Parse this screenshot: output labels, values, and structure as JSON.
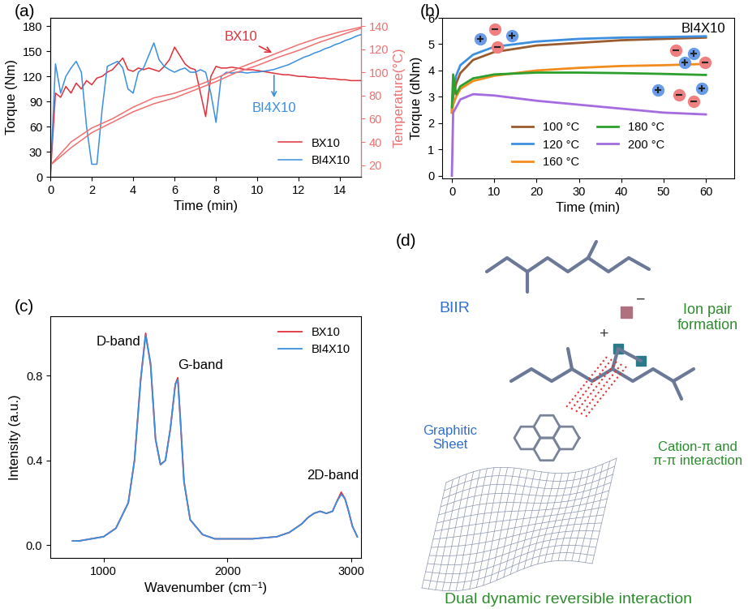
{
  "chart_data": [
    {
      "panel_label": "(a)",
      "type": "line",
      "x_label": "Time (min)",
      "y_label": "Torque (Nm)",
      "y2_label": "Temperature(°C)",
      "xlim": [
        0,
        15
      ],
      "xticks": [
        0,
        2,
        4,
        6,
        8,
        10,
        12,
        14
      ],
      "ylim": [
        0,
        190
      ],
      "yticks": [
        0,
        30,
        60,
        90,
        120,
        150,
        180
      ],
      "y2lim": [
        10,
        147
      ],
      "y2ticks": [
        20,
        40,
        60,
        80,
        100,
        120,
        140
      ],
      "legend": "lower right",
      "annotations": [
        "BX10",
        "BI4X10"
      ],
      "series": [
        {
          "name": "BX10",
          "color": "#e0303a",
          "x": [
            0,
            0.25,
            0.5,
            0.75,
            1,
            1.25,
            1.5,
            1.75,
            2,
            2.25,
            2.5,
            2.75,
            3,
            3.25,
            3.5,
            3.75,
            4,
            4.25,
            4.5,
            4.75,
            5,
            5.25,
            5.5,
            5.75,
            6,
            6.25,
            6.5,
            6.75,
            7,
            7.25,
            7.5,
            7.75,
            8,
            8.25,
            8.5,
            8.75,
            9,
            9.25,
            9.5,
            9.75,
            10,
            10.25,
            10.5,
            10.75,
            11,
            11.25,
            11.5,
            11.75,
            12,
            12.25,
            12.5,
            12.75,
            13,
            13.25,
            13.5,
            13.75,
            14,
            14.25,
            14.5,
            14.75,
            15
          ],
          "values": [
            0,
            100,
            95,
            108,
            100,
            112,
            105,
            115,
            110,
            118,
            120,
            125,
            128,
            135,
            142,
            128,
            126,
            130,
            128,
            130,
            128,
            126,
            132,
            140,
            155,
            145,
            135,
            130,
            128,
            100,
            72,
            120,
            132,
            130,
            130,
            131,
            130,
            129,
            128,
            128,
            127,
            126,
            125,
            124,
            123,
            122,
            122,
            121,
            120,
            120,
            119,
            119,
            118,
            118,
            117,
            117,
            116,
            116,
            115,
            115,
            115
          ]
        },
        {
          "name": "BI4X10",
          "color": "#3a8fe0",
          "x": [
            0,
            0.25,
            0.5,
            0.75,
            1,
            1.25,
            1.5,
            1.75,
            2,
            2.25,
            2.5,
            2.75,
            3,
            3.25,
            3.5,
            3.75,
            4,
            4.25,
            4.5,
            4.75,
            5,
            5.25,
            5.5,
            5.75,
            6,
            6.25,
            6.5,
            6.75,
            7,
            7.25,
            7.5,
            7.75,
            8,
            8.25,
            8.5,
            8.75,
            9,
            9.25,
            9.5,
            9.75,
            10,
            10.25,
            10.5,
            10.75,
            11,
            11.25,
            11.5,
            11.75,
            12,
            12.25,
            12.5,
            12.75,
            13,
            13.25,
            13.5,
            13.75,
            14,
            14.25,
            14.5,
            14.75,
            15
          ],
          "values": [
            0,
            135,
            100,
            120,
            130,
            138,
            125,
            60,
            15,
            15,
            80,
            132,
            135,
            138,
            130,
            105,
            100,
            125,
            130,
            145,
            160,
            140,
            132,
            128,
            125,
            128,
            130,
            125,
            125,
            128,
            125,
            100,
            65,
            120,
            125,
            124,
            125,
            125,
            124,
            125,
            125,
            126,
            127,
            128,
            130,
            132,
            134,
            137,
            140,
            143,
            145,
            148,
            150,
            153,
            155,
            158,
            160,
            163,
            165,
            168,
            170
          ]
        },
        {
          "color": "#f07070",
          "axis": "y2",
          "x": [
            0,
            1,
            2,
            3,
            4,
            5,
            6,
            7,
            8,
            9,
            10,
            11,
            12,
            13,
            14,
            15
          ],
          "values": [
            20,
            40,
            52,
            60,
            70,
            78,
            82,
            88,
            95,
            103,
            110,
            117,
            124,
            130,
            135,
            139
          ]
        },
        {
          "color": "#f07070",
          "axis": "y2",
          "x": [
            0,
            1,
            2,
            3,
            4,
            5,
            6,
            7,
            8,
            9,
            10,
            11,
            12,
            13,
            14,
            15
          ],
          "values": [
            20,
            35,
            48,
            57,
            66,
            73,
            78,
            85,
            92,
            100,
            106,
            113,
            119,
            126,
            132,
            138
          ]
        }
      ]
    },
    {
      "panel_label": "(b)",
      "type": "line",
      "x_label": "Time (min)",
      "y_label": "Torque (dNm)",
      "xlim": [
        -2.3,
        66.7
      ],
      "xticks": [
        0,
        10,
        20,
        30,
        40,
        50,
        60
      ],
      "ylim": [
        -0.1,
        6
      ],
      "yticks": [
        0,
        1,
        2,
        3,
        4,
        5,
        6
      ],
      "legend": "lower center",
      "annotations": [
        "BI4X10"
      ],
      "x": [
        0,
        0.3,
        1,
        2,
        5,
        10,
        20,
        30,
        40,
        50,
        60
      ],
      "series": [
        {
          "name": "100 °C",
          "color": "#9a5b2e",
          "values": [
            2.4,
            3.0,
            3.5,
            3.9,
            4.4,
            4.7,
            4.95,
            5.05,
            5.15,
            5.2,
            5.25
          ]
        },
        {
          "name": "120 °C",
          "color": "#3d8fe0",
          "values": [
            2.5,
            3.2,
            3.8,
            4.2,
            4.6,
            4.9,
            5.1,
            5.2,
            5.25,
            5.27,
            5.3
          ]
        },
        {
          "name": "160 °C",
          "color": "#f28c1e",
          "values": [
            2.4,
            2.7,
            3.0,
            3.3,
            3.6,
            3.8,
            4.0,
            4.1,
            4.17,
            4.2,
            4.25
          ]
        },
        {
          "name": "180 °C",
          "color": "#2ca02c",
          "values": [
            2.6,
            3.85,
            3.1,
            3.4,
            3.7,
            3.85,
            3.92,
            3.92,
            3.9,
            3.87,
            3.83
          ]
        },
        {
          "name": "200 °C",
          "color": "#a46ce0",
          "values": [
            0,
            2.4,
            2.6,
            2.9,
            3.1,
            3.05,
            2.85,
            2.7,
            2.55,
            2.4,
            2.33
          ]
        }
      ]
    },
    {
      "panel_label": "(c)",
      "type": "line",
      "x_label": "Wavenumber (cm⁻¹)",
      "y_label": "Intensity (a.u.)",
      "xlim": [
        570,
        3080
      ],
      "xticks": [
        1000,
        2000,
        3000
      ],
      "ylim": [
        -0.06,
        1.08
      ],
      "yticks": [
        {
          "value": 0,
          "label": "0.0"
        },
        {
          "value": 0.4,
          "label": "0.4"
        },
        {
          "value": 0.8,
          "label": "0.8"
        }
      ],
      "legend": "upper right",
      "annotations": [
        "D-band",
        "G-band",
        "2D-band"
      ],
      "x": [
        750,
        800,
        900,
        1000,
        1100,
        1200,
        1250,
        1300,
        1340,
        1380,
        1420,
        1460,
        1500,
        1540,
        1580,
        1600,
        1620,
        1650,
        1700,
        1800,
        1900,
        2000,
        2200,
        2400,
        2500,
        2600,
        2650,
        2700,
        2750,
        2800,
        2850,
        2880,
        2920,
        2950,
        2980,
        3010,
        3050
      ],
      "series": [
        {
          "name": "BX10",
          "color": "#e0303a",
          "values": [
            0.02,
            0.02,
            0.03,
            0.04,
            0.08,
            0.2,
            0.4,
            0.78,
            1.0,
            0.85,
            0.5,
            0.38,
            0.4,
            0.55,
            0.76,
            0.79,
            0.6,
            0.3,
            0.12,
            0.05,
            0.03,
            0.03,
            0.03,
            0.04,
            0.06,
            0.1,
            0.13,
            0.15,
            0.16,
            0.15,
            0.16,
            0.2,
            0.25,
            0.22,
            0.16,
            0.09,
            0.04
          ]
        },
        {
          "name": "BI4X10",
          "color": "#3a8fe0",
          "values": [
            0.02,
            0.02,
            0.03,
            0.04,
            0.08,
            0.2,
            0.4,
            0.78,
            0.99,
            0.86,
            0.5,
            0.38,
            0.4,
            0.55,
            0.76,
            0.78,
            0.6,
            0.3,
            0.12,
            0.05,
            0.03,
            0.03,
            0.03,
            0.04,
            0.06,
            0.1,
            0.13,
            0.15,
            0.16,
            0.15,
            0.16,
            0.2,
            0.24,
            0.22,
            0.16,
            0.09,
            0.04
          ]
        }
      ]
    }
  ],
  "diagram": {
    "panel_label": "(d)",
    "polymer": "BIIR",
    "ion_pair": "Ion pair formation",
    "sheet": "Graphitic Sheet",
    "interaction": "Cation-π and π-π interaction",
    "caption": "Dual dynamic reversible interaction",
    "anion": "−",
    "cation": "+"
  }
}
